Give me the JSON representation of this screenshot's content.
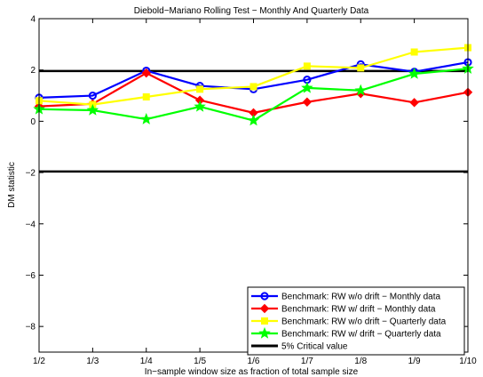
{
  "chart_data": {
    "type": "line",
    "title": "Diebold−Mariano Rolling Test − Monthly And Quarterly Data",
    "xlabel": "In−sample window size as fraction of total sample size",
    "ylabel": "DM statistic",
    "categories": [
      "1/2",
      "1/3",
      "1/4",
      "1/5",
      "1/6",
      "1/7",
      "1/8",
      "1/9",
      "1/10"
    ],
    "ylim": [
      -9,
      4
    ],
    "yticks": [
      4,
      2,
      0,
      -2,
      -4,
      -6,
      -8
    ],
    "ytick_labels": [
      "4",
      "2",
      "0",
      "−2",
      "−4",
      "−6",
      "−8"
    ],
    "grid": false,
    "legend_position": "bottom-right",
    "series": [
      {
        "name": "Benchmark: RW w/o drift − Monthly data",
        "color": "#0000ff",
        "marker": "circle",
        "values": [
          0.92,
          1.0,
          1.97,
          1.38,
          1.25,
          1.62,
          2.22,
          1.93,
          2.3
        ]
      },
      {
        "name": "Benchmark: RW w/ drift − Monthly data",
        "color": "#ff0000",
        "marker": "diamond",
        "values": [
          0.58,
          0.68,
          1.88,
          0.82,
          0.33,
          0.75,
          1.08,
          0.73,
          1.13
        ]
      },
      {
        "name": "Benchmark: RW w/o drift − Quarterly data",
        "color": "#ffff00",
        "marker": "square",
        "values": [
          0.8,
          0.65,
          0.95,
          1.25,
          1.35,
          2.15,
          2.08,
          2.7,
          2.87
        ]
      },
      {
        "name": "Benchmark: RW w/ drift − Quarterly data",
        "color": "#00ff00",
        "marker": "star",
        "values": [
          0.47,
          0.43,
          0.08,
          0.57,
          0.03,
          1.3,
          1.2,
          1.85,
          2.05
        ]
      }
    ],
    "reference_lines": [
      {
        "name": "5% Critical value",
        "color": "#000000",
        "values": [
          1.96,
          -1.96
        ]
      }
    ]
  }
}
